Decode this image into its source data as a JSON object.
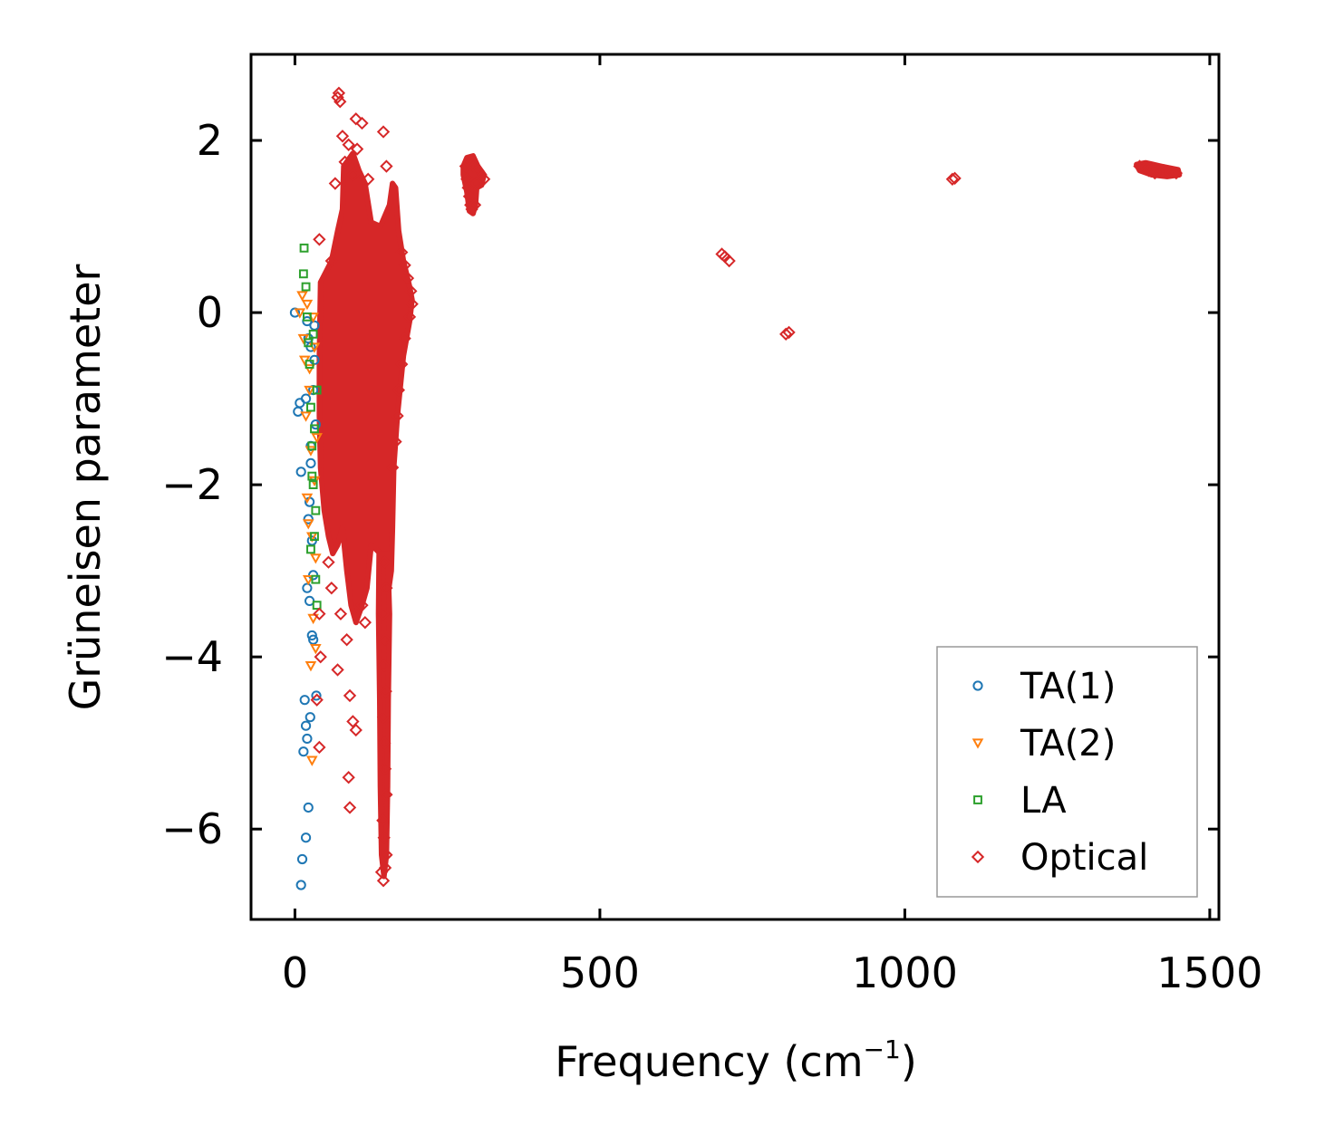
{
  "chart_data": {
    "type": "scatter",
    "xlabel": "Frequency (cm",
    "xlabel_sup": "−1",
    "xlabel_close": ")",
    "ylabel": "Grüneisen parameter",
    "xlim": [
      -72,
      1515
    ],
    "ylim": [
      -7.05,
      3.0
    ],
    "xticks": [
      0,
      500,
      1000,
      1500
    ],
    "xtick_labels": [
      "0",
      "500",
      "1000",
      "1500"
    ],
    "yticks": [
      2,
      0,
      -2,
      -4,
      -6
    ],
    "ytick_labels": [
      "2",
      "0",
      "−2",
      "−4",
      "−6"
    ],
    "legend_position": "bottom-right",
    "series": [
      {
        "name": "TA(1)",
        "marker": "circle",
        "color": "#1f77b4",
        "points": [
          [
            0,
            0
          ],
          [
            5,
            -1.15
          ],
          [
            8,
            -1.05
          ],
          [
            10,
            -6.65
          ],
          [
            12,
            -6.35
          ],
          [
            14,
            -5.1
          ],
          [
            16,
            -4.5
          ],
          [
            10,
            -1.85
          ],
          [
            18,
            -1.0
          ],
          [
            20,
            -3.2
          ],
          [
            22,
            -5.75
          ],
          [
            18,
            -6.1
          ],
          [
            20,
            -4.95
          ],
          [
            25,
            -4.7
          ],
          [
            22,
            -2.4
          ],
          [
            24,
            -2.2
          ],
          [
            26,
            -1.55
          ],
          [
            28,
            -3.75
          ],
          [
            30,
            -3.05
          ],
          [
            32,
            -0.15
          ],
          [
            30,
            -0.9
          ],
          [
            34,
            -1.3
          ],
          [
            35,
            -4.45
          ],
          [
            20,
            -0.1
          ],
          [
            26,
            -0.4
          ],
          [
            28,
            -2.65
          ],
          [
            24,
            -3.35
          ],
          [
            30,
            -3.8
          ],
          [
            18,
            -4.8
          ],
          [
            32,
            -0.55
          ],
          [
            26,
            -1.75
          ],
          [
            22,
            -0.3
          ]
        ]
      },
      {
        "name": "TA(2)",
        "marker": "triangle-down",
        "color": "#ff7f0e",
        "points": [
          [
            8,
            0.0
          ],
          [
            12,
            0.2
          ],
          [
            14,
            -0.3
          ],
          [
            16,
            -0.55
          ],
          [
            18,
            -1.2
          ],
          [
            20,
            -2.15
          ],
          [
            22,
            -3.1
          ],
          [
            24,
            -0.9
          ],
          [
            26,
            -1.6
          ],
          [
            28,
            -2.6
          ],
          [
            30,
            -3.55
          ],
          [
            26,
            -4.1
          ],
          [
            28,
            -5.2
          ],
          [
            32,
            -1.95
          ],
          [
            34,
            -2.85
          ],
          [
            30,
            -0.05
          ],
          [
            24,
            -0.65
          ],
          [
            36,
            -1.45
          ],
          [
            34,
            -3.9
          ],
          [
            22,
            -2.45
          ],
          [
            20,
            0.1
          ],
          [
            32,
            -0.4
          ]
        ]
      },
      {
        "name": "LA",
        "marker": "square",
        "color": "#2ca02c",
        "points": [
          [
            15,
            0.75
          ],
          [
            14,
            0.45
          ],
          [
            18,
            0.3
          ],
          [
            20,
            -0.05
          ],
          [
            24,
            -0.6
          ],
          [
            26,
            -1.1
          ],
          [
            28,
            -1.55
          ],
          [
            30,
            -2.0
          ],
          [
            32,
            -2.6
          ],
          [
            34,
            -3.1
          ],
          [
            36,
            -3.4
          ],
          [
            30,
            -0.25
          ],
          [
            28,
            -1.9
          ],
          [
            22,
            -0.35
          ],
          [
            34,
            -2.3
          ],
          [
            36,
            -0.9
          ],
          [
            32,
            -1.35
          ],
          [
            26,
            -2.75
          ]
        ]
      },
      {
        "name": "Optical",
        "marker": "diamond",
        "color": "#d62728",
        "points": [
          [
            70,
            2.5
          ],
          [
            72,
            2.55
          ],
          [
            74,
            2.45
          ],
          [
            100,
            2.25
          ],
          [
            110,
            2.2
          ],
          [
            145,
            2.1
          ],
          [
            78,
            2.05
          ],
          [
            88,
            1.95
          ],
          [
            102,
            1.9
          ],
          [
            150,
            1.7
          ],
          [
            66,
            1.5
          ],
          [
            82,
            1.75
          ],
          [
            95,
            1.6
          ],
          [
            120,
            1.55
          ],
          [
            40,
            0.85
          ],
          [
            60,
            0.6
          ],
          [
            175,
            0.7
          ],
          [
            180,
            0.55
          ],
          [
            185,
            0.4
          ],
          [
            190,
            0.25
          ],
          [
            192,
            0.1
          ],
          [
            188,
            -0.05
          ],
          [
            180,
            -0.3
          ],
          [
            175,
            -0.6
          ],
          [
            170,
            -0.9
          ],
          [
            168,
            -1.2
          ],
          [
            165,
            -1.5
          ],
          [
            160,
            -1.8
          ],
          [
            40,
            -3.5
          ],
          [
            42,
            -4.0
          ],
          [
            36,
            -4.5
          ],
          [
            40,
            -5.05
          ],
          [
            70,
            -4.15
          ],
          [
            90,
            -4.45
          ],
          [
            95,
            -4.75
          ],
          [
            100,
            -4.85
          ],
          [
            88,
            -5.4
          ],
          [
            90,
            -5.75
          ],
          [
            145,
            -6.6
          ],
          [
            142,
            -6.5
          ],
          [
            148,
            -6.45
          ],
          [
            150,
            -6.3
          ],
          [
            146,
            -6.1
          ],
          [
            144,
            -5.9
          ],
          [
            150,
            -5.6
          ],
          [
            148,
            -5.3
          ],
          [
            147,
            -5.0
          ],
          [
            145,
            -4.7
          ],
          [
            149,
            -4.4
          ],
          [
            146,
            -4.1
          ],
          [
            148,
            -3.8
          ],
          [
            145,
            -3.5
          ],
          [
            150,
            -3.2
          ],
          [
            147,
            -2.9
          ],
          [
            55,
            -2.9
          ],
          [
            60,
            -3.2
          ],
          [
            75,
            -3.5
          ],
          [
            85,
            -3.8
          ],
          [
            110,
            -3.4
          ],
          [
            115,
            -3.6
          ],
          [
            280,
            1.7
          ],
          [
            285,
            1.75
          ],
          [
            292,
            1.72
          ],
          [
            300,
            1.65
          ],
          [
            305,
            1.6
          ],
          [
            310,
            1.55
          ],
          [
            282,
            1.55
          ],
          [
            284,
            1.45
          ],
          [
            286,
            1.35
          ],
          [
            288,
            1.25
          ],
          [
            290,
            1.2
          ],
          [
            295,
            1.25
          ],
          [
            298,
            1.5
          ],
          [
            700,
            0.68
          ],
          [
            705,
            0.65
          ],
          [
            712,
            0.6
          ],
          [
            805,
            -0.25
          ],
          [
            810,
            -0.23
          ],
          [
            1078,
            1.55
          ],
          [
            1082,
            1.56
          ],
          [
            1385,
            1.7
          ],
          [
            1395,
            1.68
          ],
          [
            1405,
            1.66
          ],
          [
            1415,
            1.64
          ],
          [
            1425,
            1.65
          ],
          [
            1435,
            1.63
          ],
          [
            1445,
            1.62
          ],
          [
            1410,
            1.62
          ],
          [
            1400,
            1.65
          ]
        ]
      }
    ],
    "dense_clusters": [
      {
        "series": "Optical",
        "description": "dense filled band",
        "outline": [
          [
            42,
            0.35
          ],
          [
            60,
            0.6
          ],
          [
            70,
            0.95
          ],
          [
            78,
            1.2
          ],
          [
            80,
            1.7
          ],
          [
            95,
            1.85
          ],
          [
            105,
            1.65
          ],
          [
            115,
            1.5
          ],
          [
            125,
            1.05
          ],
          [
            140,
            1.0
          ],
          [
            155,
            1.25
          ],
          [
            160,
            1.5
          ],
          [
            165,
            1.45
          ],
          [
            170,
            0.95
          ],
          [
            178,
            0.6
          ],
          [
            188,
            0.3
          ],
          [
            192,
            0.15
          ],
          [
            188,
            -0.1
          ],
          [
            178,
            -0.5
          ],
          [
            168,
            -1.2
          ],
          [
            162,
            -1.8
          ],
          [
            160,
            -2.5
          ],
          [
            158,
            -3.0
          ],
          [
            152,
            -3.3
          ],
          [
            145,
            -3.1
          ],
          [
            140,
            -2.8
          ],
          [
            125,
            -2.7
          ],
          [
            118,
            -3.2
          ],
          [
            110,
            -3.4
          ],
          [
            100,
            -3.6
          ],
          [
            92,
            -3.4
          ],
          [
            85,
            -3.0
          ],
          [
            78,
            -2.5
          ],
          [
            70,
            -2.7
          ],
          [
            62,
            -2.8
          ],
          [
            55,
            -2.6
          ],
          [
            48,
            -2.3
          ],
          [
            42,
            -1.8
          ],
          [
            40,
            -1.2
          ],
          [
            40,
            -0.5
          ]
        ]
      },
      {
        "series": "Optical",
        "description": "narrow spike at ~145 cm-1",
        "outline": [
          [
            138,
            -2.8
          ],
          [
            152,
            -2.8
          ],
          [
            155,
            -3.5
          ],
          [
            153,
            -4.5
          ],
          [
            152,
            -5.5
          ],
          [
            150,
            -6.3
          ],
          [
            146,
            -6.55
          ],
          [
            142,
            -6.3
          ],
          [
            140,
            -5.5
          ],
          [
            139,
            -4.5
          ],
          [
            137,
            -3.5
          ]
        ]
      },
      {
        "series": "Optical",
        "description": "cluster near 290 cm-1",
        "outline": [
          [
            276,
            1.7
          ],
          [
            282,
            1.8
          ],
          [
            292,
            1.82
          ],
          [
            300,
            1.7
          ],
          [
            310,
            1.6
          ],
          [
            306,
            1.48
          ],
          [
            298,
            1.45
          ],
          [
            296,
            1.25
          ],
          [
            292,
            1.15
          ],
          [
            286,
            1.18
          ],
          [
            282,
            1.4
          ],
          [
            276,
            1.6
          ]
        ]
      },
      {
        "series": "Optical",
        "description": "cluster near 1420 cm-1",
        "outline": [
          [
            1380,
            1.72
          ],
          [
            1395,
            1.74
          ],
          [
            1420,
            1.7
          ],
          [
            1448,
            1.66
          ],
          [
            1450,
            1.6
          ],
          [
            1430,
            1.58
          ],
          [
            1405,
            1.6
          ],
          [
            1385,
            1.65
          ]
        ]
      }
    ]
  }
}
